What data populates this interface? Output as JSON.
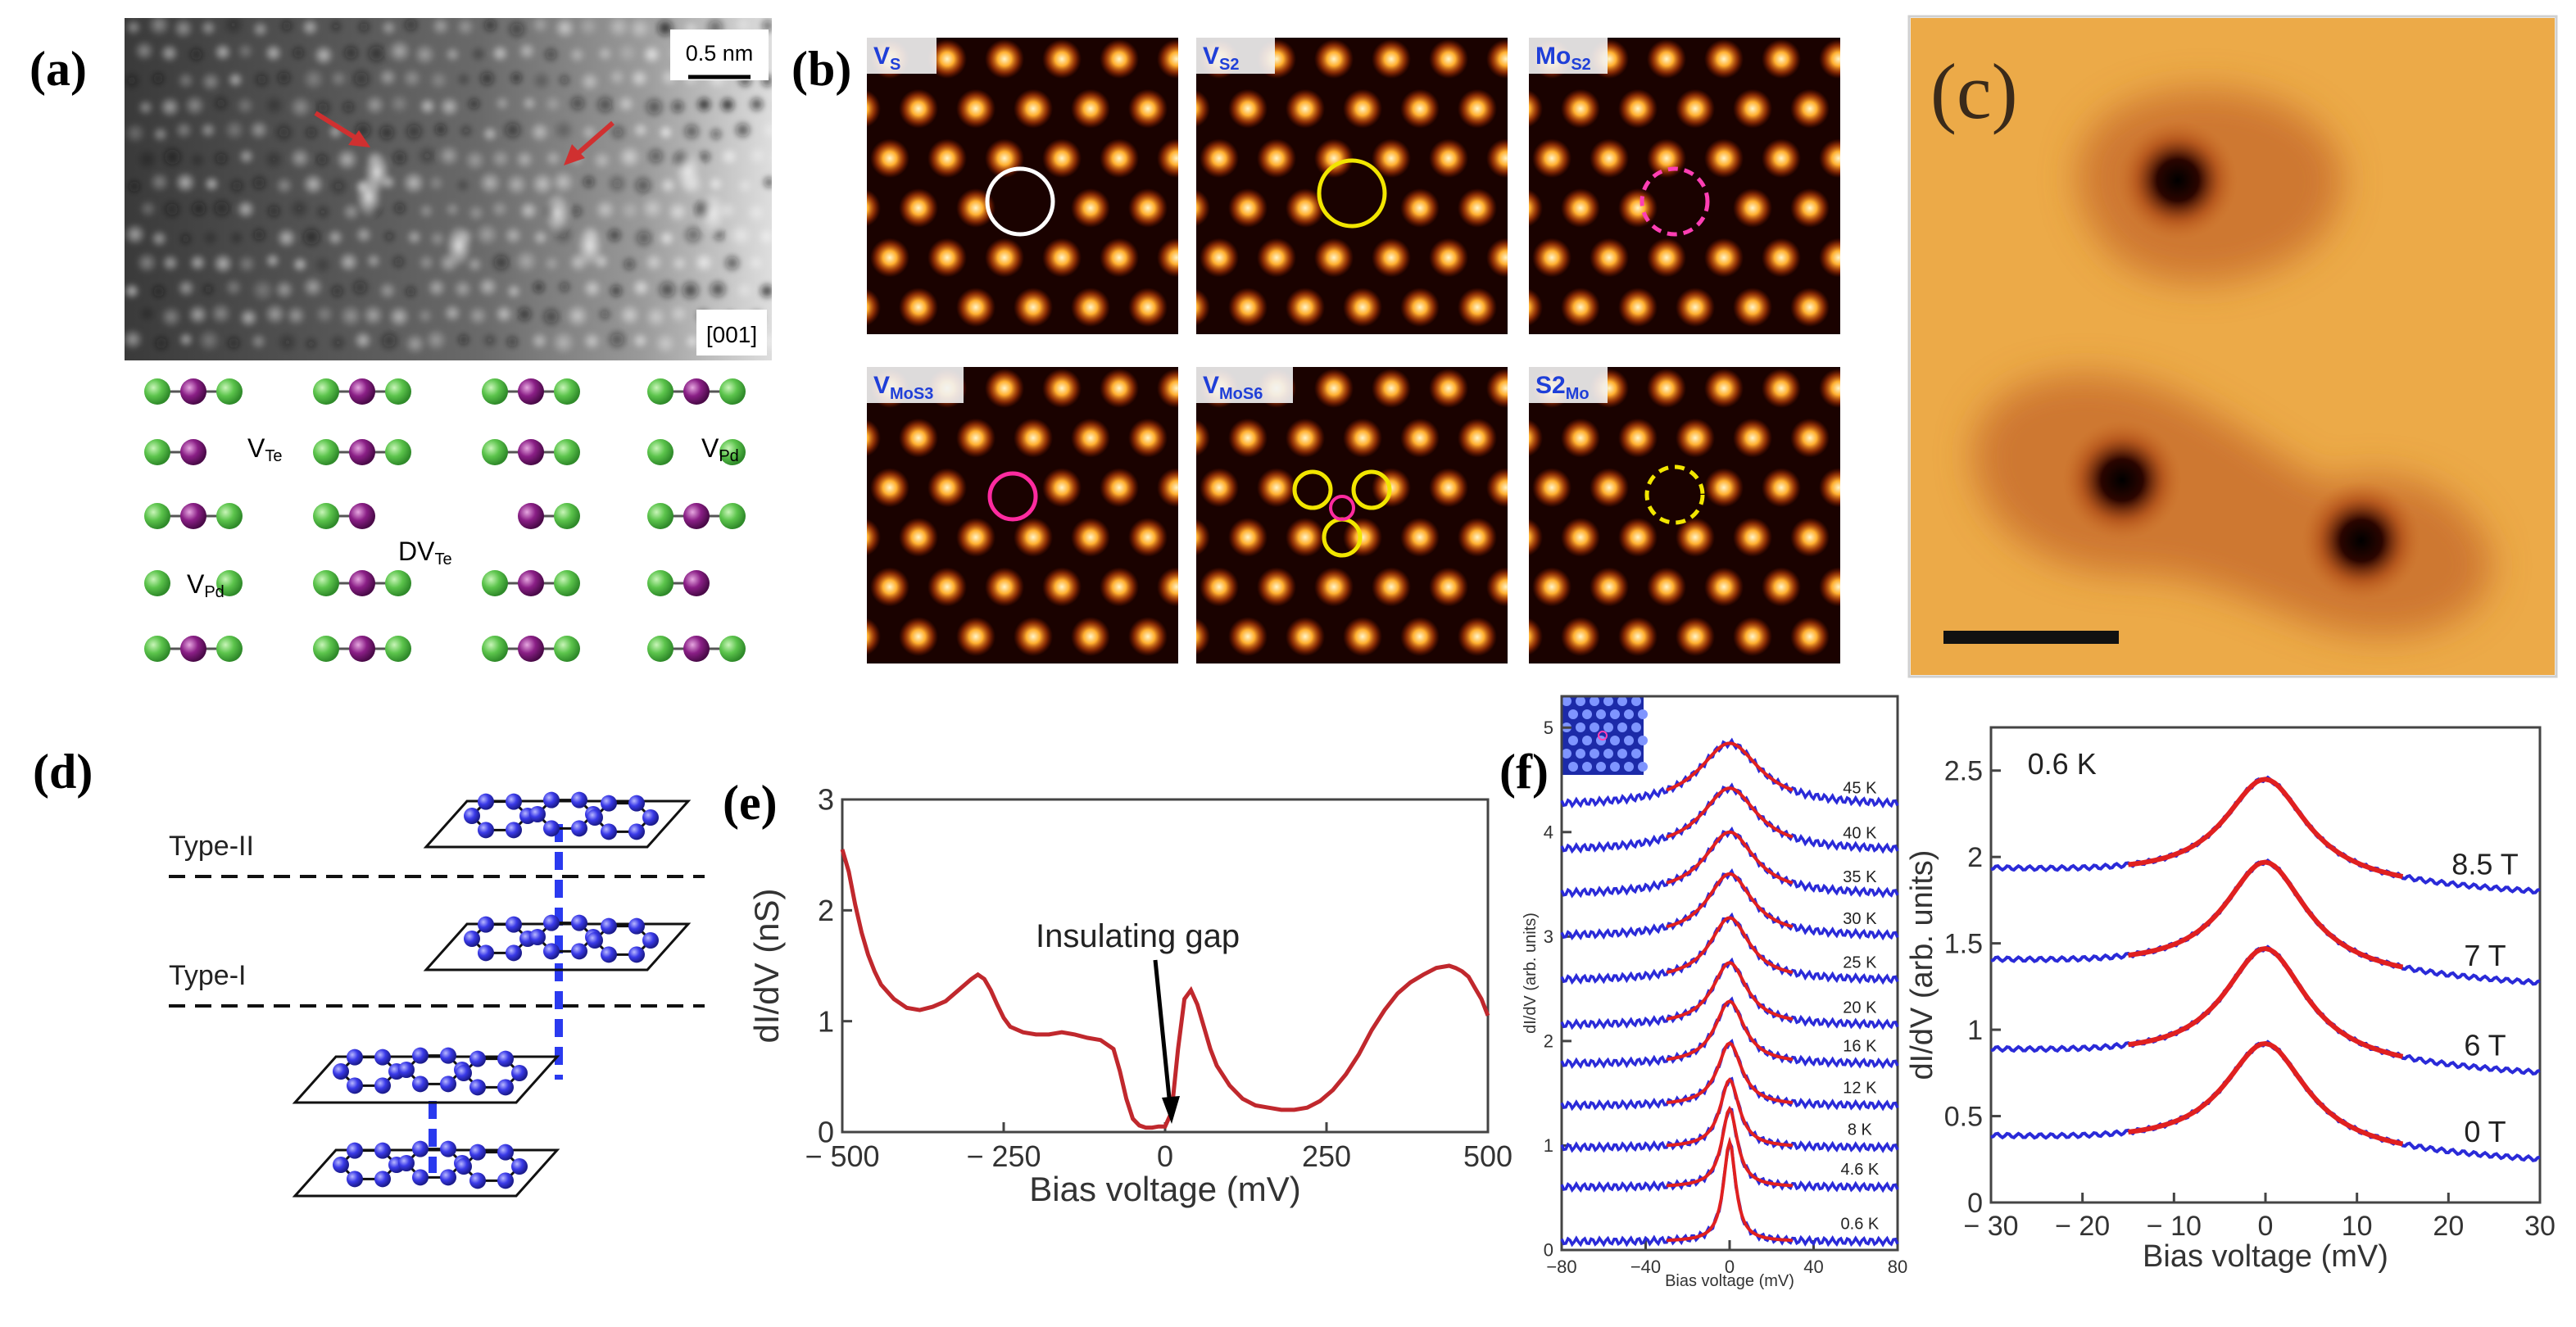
{
  "panel_a": {
    "label": "(a)",
    "scale_text": "0.5 nm",
    "zone_axis": "[001]",
    "defects": {
      "vte_main": "V",
      "vte_sub": "Te",
      "vpd_main": "V",
      "vpd_sub": "Pd",
      "dvte_main": "DV",
      "dvte_sub": "Te",
      "vpd2_main": "V",
      "vpd2_sub": "Pd"
    },
    "colors": {
      "te_atom": "#5cc44c",
      "pd_atom": "#8a1f86"
    }
  },
  "panel_b": {
    "label": "(b)",
    "tiles": [
      {
        "main": "V",
        "sub": "S",
        "marker": "#ffffff"
      },
      {
        "main": "V",
        "sub": "S2",
        "marker": "#f2e600"
      },
      {
        "main": "Mo",
        "sub": "S2",
        "marker": "#ff3fb4"
      },
      {
        "main": "V",
        "sub": "MoS3",
        "marker": "#ff2ba0"
      },
      {
        "main": "V",
        "sub": "MoS6",
        "marker": "#f2e600"
      },
      {
        "main": "S2",
        "sub": "Mo",
        "marker": "#f2e600"
      }
    ]
  },
  "panel_c": {
    "label": "(c)"
  },
  "panel_d": {
    "label": "(d)",
    "type2": "Type-II",
    "type1": "Type-I",
    "atom_color": "#3a3ae8"
  },
  "panel_e": {
    "label": "(e)",
    "annotation": "Insulating gap"
  },
  "panel_f": {
    "label": "(f)"
  },
  "chart_data": [
    {
      "id": "e",
      "type": "line",
      "xlabel": "Bias voltage (mV)",
      "ylabel": "dI/dV (nS)",
      "xlim": [
        -500,
        500
      ],
      "ylim": [
        0,
        3
      ],
      "xticks": [
        "− 500",
        "− 250",
        "0",
        "250",
        "500"
      ],
      "xtick_values": [
        -500,
        -250,
        0,
        250,
        500
      ],
      "yticks": [
        "0",
        "1",
        "2",
        "3"
      ],
      "ytick_values": [
        0,
        1,
        2,
        3
      ],
      "color": "#c0282d",
      "series": [
        {
          "name": "dI/dV",
          "x": [
            -500,
            -490,
            -480,
            -470,
            -460,
            -450,
            -440,
            -420,
            -400,
            -380,
            -360,
            -340,
            -320,
            -300,
            -290,
            -280,
            -270,
            -260,
            -250,
            -240,
            -220,
            -200,
            -180,
            -160,
            -140,
            -120,
            -100,
            -80,
            -70,
            -60,
            -50,
            -40,
            -30,
            -20,
            -10,
            0,
            10,
            20,
            30,
            40,
            50,
            60,
            70,
            80,
            100,
            120,
            140,
            160,
            180,
            200,
            220,
            240,
            260,
            280,
            300,
            320,
            340,
            360,
            380,
            400,
            420,
            440,
            450,
            460,
            470,
            480,
            490,
            500
          ],
          "y": [
            2.55,
            2.35,
            2.05,
            1.8,
            1.6,
            1.45,
            1.33,
            1.2,
            1.12,
            1.1,
            1.13,
            1.18,
            1.28,
            1.38,
            1.42,
            1.38,
            1.28,
            1.15,
            1.03,
            0.95,
            0.9,
            0.88,
            0.88,
            0.9,
            0.88,
            0.85,
            0.83,
            0.75,
            0.55,
            0.3,
            0.12,
            0.06,
            0.04,
            0.04,
            0.05,
            0.05,
            0.18,
            0.75,
            1.2,
            1.28,
            1.15,
            0.95,
            0.75,
            0.6,
            0.42,
            0.3,
            0.24,
            0.22,
            0.2,
            0.2,
            0.22,
            0.28,
            0.38,
            0.52,
            0.7,
            0.92,
            1.1,
            1.25,
            1.35,
            1.42,
            1.48,
            1.5,
            1.48,
            1.45,
            1.4,
            1.3,
            1.2,
            1.05
          ]
        }
      ]
    },
    {
      "id": "f_left",
      "type": "line",
      "xlabel": "Bias voltage (mV)",
      "ylabel": "dI/dV (arb. units)",
      "xlim": [
        -80,
        80
      ],
      "ylim": [
        0,
        5.3
      ],
      "xticks": [
        "−80",
        "−40",
        "0",
        "40",
        "80"
      ],
      "xtick_values": [
        -80,
        -40,
        0,
        40,
        80
      ],
      "yticks": [
        "0",
        "1",
        "2",
        "3",
        "4",
        "5"
      ],
      "ytick_values": [
        0,
        1,
        2,
        3,
        4,
        5
      ],
      "series_colors": {
        "data": "#2a2ad8",
        "fit": "#e02020"
      },
      "series": [
        {
          "name": "0.6 K",
          "offset": 0.08,
          "amplitude": 0.95,
          "width": 3.5
        },
        {
          "name": "4.6 K",
          "offset": 0.6,
          "amplitude": 0.75,
          "width": 4.5
        },
        {
          "name": "8 K",
          "offset": 0.98,
          "amplitude": 0.65,
          "width": 5.5
        },
        {
          "name": "12 K",
          "offset": 1.38,
          "amplitude": 0.6,
          "width": 7
        },
        {
          "name": "16 K",
          "offset": 1.78,
          "amplitude": 0.6,
          "width": 8.5
        },
        {
          "name": "20 K",
          "offset": 2.15,
          "amplitude": 0.6,
          "width": 10
        },
        {
          "name": "25 K",
          "offset": 2.58,
          "amplitude": 0.6,
          "width": 11.5
        },
        {
          "name": "30 K",
          "offset": 3.0,
          "amplitude": 0.6,
          "width": 13
        },
        {
          "name": "35 K",
          "offset": 3.4,
          "amplitude": 0.6,
          "width": 14.5
        },
        {
          "name": "40 K",
          "offset": 3.82,
          "amplitude": 0.6,
          "width": 16
        },
        {
          "name": "45 K",
          "offset": 4.25,
          "amplitude": 0.6,
          "width": 17.5
        }
      ]
    },
    {
      "id": "f_right",
      "type": "line",
      "annotation": "0.6 K",
      "xlabel": "Bias voltage (mV)",
      "ylabel": "dI/dV (arb. units)",
      "xlim": [
        -30,
        30
      ],
      "ylim": [
        0,
        2.75
      ],
      "xticks": [
        "− 30",
        "− 20",
        "− 10",
        "0",
        "10",
        "20",
        "30"
      ],
      "xtick_values": [
        -30,
        -20,
        -10,
        0,
        10,
        20,
        30
      ],
      "yticks": [
        "0",
        "0.5",
        "1",
        "1.5",
        "2",
        "2.5"
      ],
      "ytick_values": [
        0,
        0.5,
        1,
        1.5,
        2,
        2.5
      ],
      "series_colors": {
        "data": "#2a2ad8",
        "fit": "#e02020"
      },
      "series": [
        {
          "name": "0 T",
          "offset": 0.3,
          "amplitude": 0.62,
          "width": 5.5,
          "slope": -0.0023
        },
        {
          "name": "6 T",
          "offset": 0.8,
          "amplitude": 0.67,
          "width": 5.5,
          "slope": -0.0023
        },
        {
          "name": "7 T",
          "offset": 1.32,
          "amplitude": 0.65,
          "width": 5.5,
          "slope": -0.0023
        },
        {
          "name": "8.5 T",
          "offset": 1.85,
          "amplitude": 0.6,
          "width": 5.5,
          "slope": -0.0023
        }
      ]
    }
  ]
}
